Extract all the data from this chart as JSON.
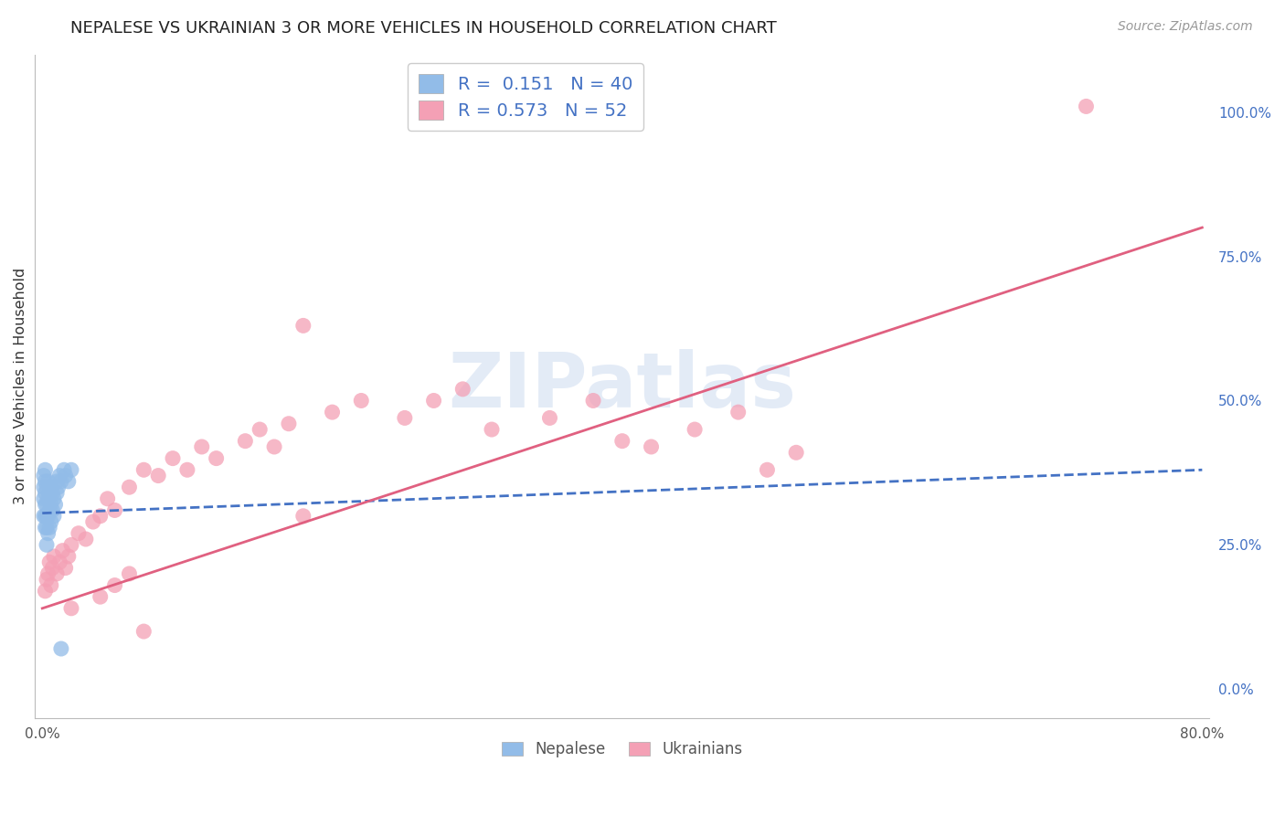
{
  "title": "NEPALESE VS UKRAINIAN 3 OR MORE VEHICLES IN HOUSEHOLD CORRELATION CHART",
  "source_text": "Source: ZipAtlas.com",
  "ylabel": "3 or more Vehicles in Household",
  "watermark": "ZIPatlas",
  "xlim": [
    -0.005,
    0.805
  ],
  "ylim": [
    -0.05,
    1.1
  ],
  "yticks_right": [
    0.0,
    0.25,
    0.5,
    0.75,
    1.0
  ],
  "ytick_right_labels": [
    "0.0%",
    "25.0%",
    "50.0%",
    "75.0%",
    "100.0%"
  ],
  "nepalese_color": "#92bce8",
  "ukrainian_color": "#f4a0b5",
  "nepalese_R": 0.151,
  "nepalese_N": 40,
  "ukrainian_R": 0.573,
  "ukrainian_N": 52,
  "nepalese_line_color": "#4472c4",
  "ukrainian_line_color": "#e06080",
  "background_color": "#ffffff",
  "grid_color": "#cccccc",
  "title_fontsize": 13,
  "nepalese_x": [
    0.001,
    0.001,
    0.001,
    0.001,
    0.002,
    0.002,
    0.002,
    0.002,
    0.002,
    0.002,
    0.003,
    0.003,
    0.003,
    0.003,
    0.003,
    0.004,
    0.004,
    0.004,
    0.004,
    0.005,
    0.005,
    0.005,
    0.006,
    0.006,
    0.006,
    0.007,
    0.007,
    0.008,
    0.008,
    0.009,
    0.01,
    0.01,
    0.011,
    0.012,
    0.013,
    0.015,
    0.016,
    0.018,
    0.02,
    0.013
  ],
  "nepalese_y": [
    0.3,
    0.33,
    0.35,
    0.37,
    0.28,
    0.3,
    0.32,
    0.34,
    0.36,
    0.38,
    0.25,
    0.28,
    0.3,
    0.32,
    0.35,
    0.27,
    0.3,
    0.33,
    0.36,
    0.28,
    0.31,
    0.34,
    0.29,
    0.32,
    0.35,
    0.31,
    0.34,
    0.3,
    0.33,
    0.32,
    0.34,
    0.36,
    0.35,
    0.37,
    0.36,
    0.38,
    0.37,
    0.36,
    0.38,
    0.07
  ],
  "nepalese_line_x": [
    0.0,
    0.8
  ],
  "nepalese_line_y": [
    0.305,
    0.38
  ],
  "ukrainian_x": [
    0.002,
    0.003,
    0.004,
    0.005,
    0.006,
    0.007,
    0.008,
    0.01,
    0.012,
    0.014,
    0.016,
    0.018,
    0.02,
    0.025,
    0.03,
    0.035,
    0.04,
    0.045,
    0.05,
    0.06,
    0.07,
    0.08,
    0.09,
    0.1,
    0.11,
    0.12,
    0.14,
    0.15,
    0.16,
    0.17,
    0.18,
    0.2,
    0.22,
    0.25,
    0.27,
    0.29,
    0.31,
    0.35,
    0.38,
    0.4,
    0.42,
    0.45,
    0.48,
    0.5,
    0.52,
    0.18,
    0.02,
    0.05,
    0.04,
    0.06,
    0.07,
    0.72
  ],
  "ukrainian_y": [
    0.17,
    0.19,
    0.2,
    0.22,
    0.18,
    0.21,
    0.23,
    0.2,
    0.22,
    0.24,
    0.21,
    0.23,
    0.25,
    0.27,
    0.26,
    0.29,
    0.3,
    0.33,
    0.31,
    0.35,
    0.38,
    0.37,
    0.4,
    0.38,
    0.42,
    0.4,
    0.43,
    0.45,
    0.42,
    0.46,
    0.63,
    0.48,
    0.5,
    0.47,
    0.5,
    0.52,
    0.45,
    0.47,
    0.5,
    0.43,
    0.42,
    0.45,
    0.48,
    0.38,
    0.41,
    0.3,
    0.14,
    0.18,
    0.16,
    0.2,
    0.1,
    1.01
  ],
  "ukrainian_line_x": [
    0.0,
    0.8
  ],
  "ukrainian_line_y": [
    0.14,
    0.8
  ]
}
